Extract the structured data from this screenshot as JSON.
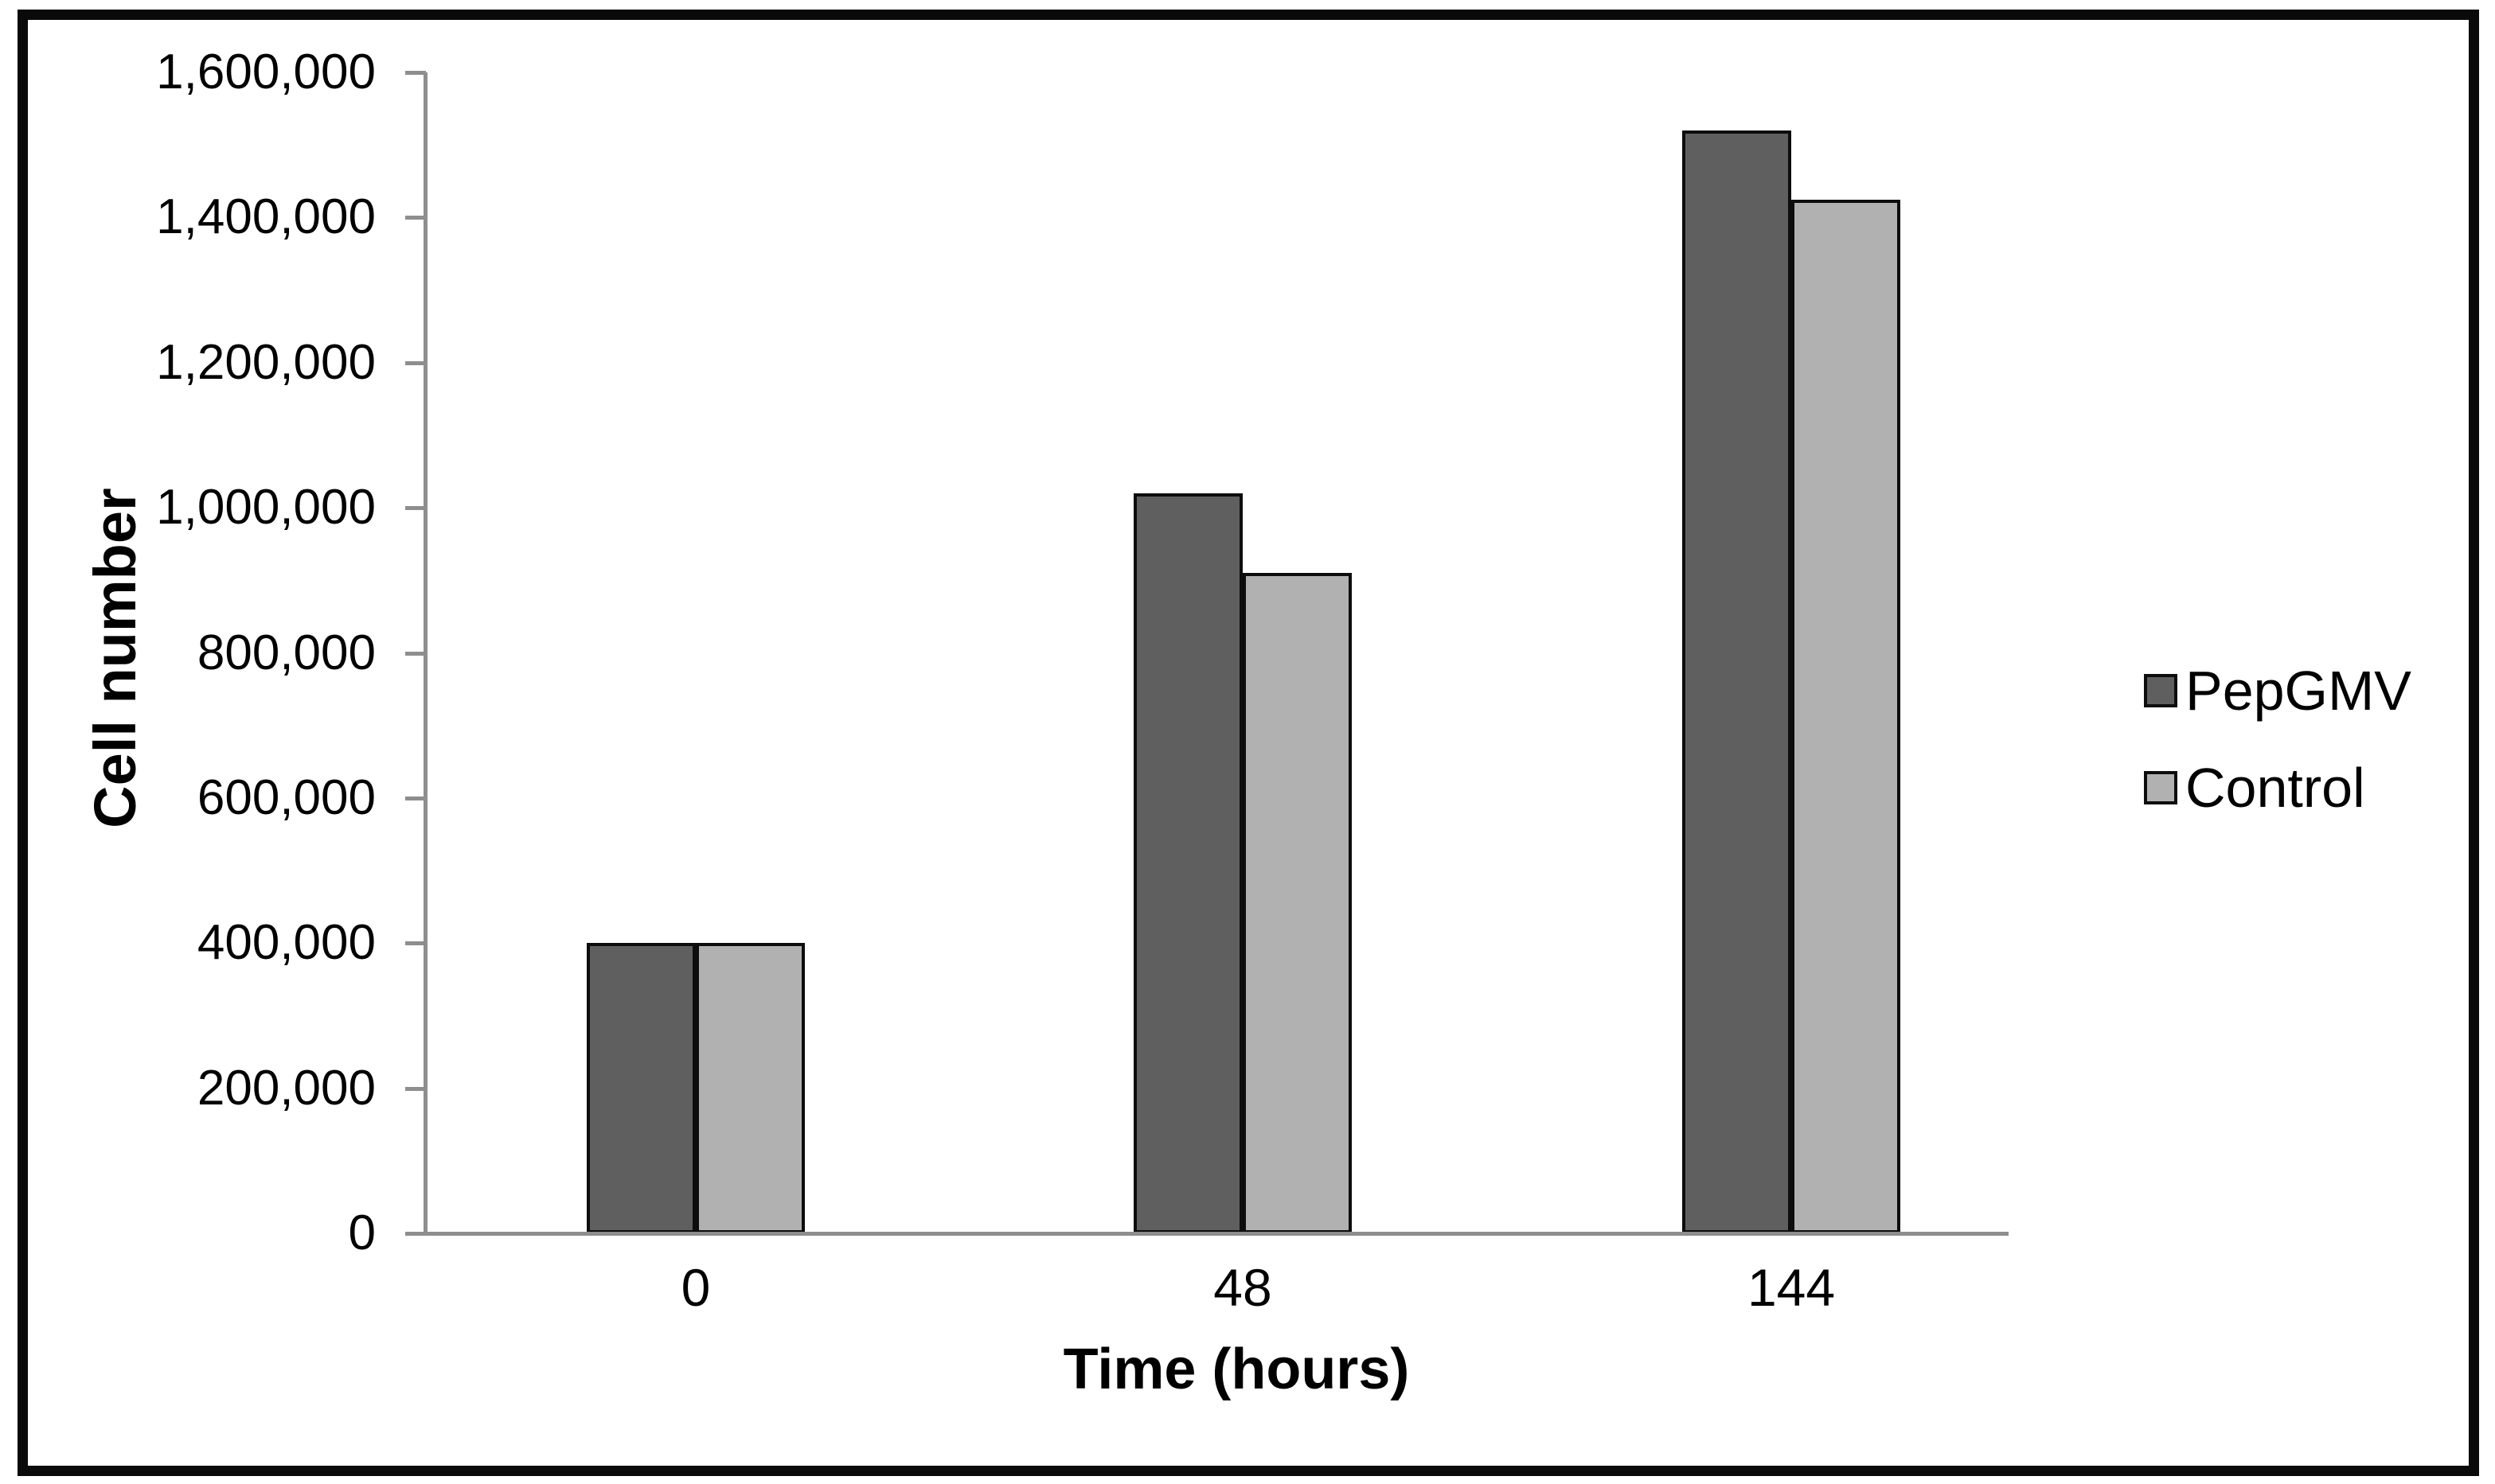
{
  "chart_data": {
    "type": "bar",
    "title": "",
    "xlabel": "Time (hours)",
    "ylabel": "Cell number",
    "categories": [
      "0",
      "48",
      "144"
    ],
    "series": [
      {
        "name": "PepGMV",
        "color": "#5f5f5f",
        "values": [
          400000,
          1020000,
          1520000
        ]
      },
      {
        "name": "Control",
        "color": "#b1b1b1",
        "values": [
          400000,
          910000,
          1425000
        ]
      }
    ],
    "ylim": [
      0,
      1600000
    ],
    "ytick_step": 200000,
    "ytick_labels": [
      "0",
      "200,000",
      "400,000",
      "600,000",
      "800,000",
      "1,000,000",
      "1,200,000",
      "1,400,000",
      "1,600,000"
    ],
    "grid": false,
    "legend_position": "right",
    "bar_border_color": "#0d0d0d",
    "axis_color": "#8e8e8e",
    "frame_color": "#0a0a0a",
    "background_color": "#ffffff"
  }
}
